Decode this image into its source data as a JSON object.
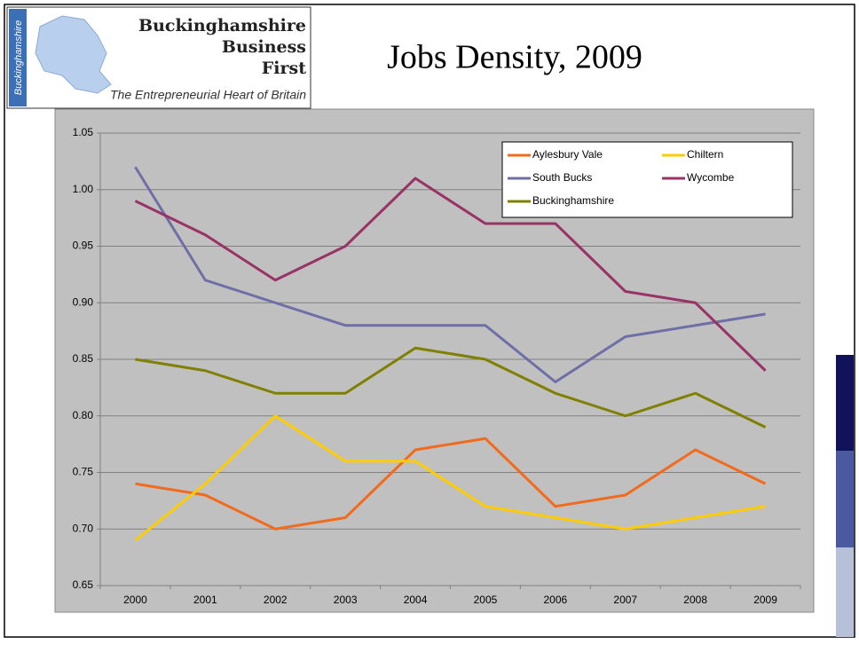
{
  "logo": {
    "side": "Buckinghamshire",
    "name": [
      "Buckinghamshire",
      "Business",
      "First"
    ],
    "tagline": "The Entrepreneurial Heart of Britain"
  },
  "chart_data": {
    "type": "line",
    "title": "Jobs Density, 2009",
    "categories": [
      "2000",
      "2001",
      "2002",
      "2003",
      "2004",
      "2005",
      "2006",
      "2007",
      "2008",
      "2009"
    ],
    "series": [
      {
        "name": "Aylesbury Vale",
        "color": "#f26b1d",
        "values": [
          0.74,
          0.73,
          0.7,
          0.71,
          0.77,
          0.78,
          0.72,
          0.73,
          0.77,
          0.74
        ]
      },
      {
        "name": "Chiltern",
        "color": "#ffcc00",
        "values": [
          0.69,
          0.74,
          0.8,
          0.76,
          0.76,
          0.72,
          0.71,
          0.7,
          0.71,
          0.72
        ]
      },
      {
        "name": "South Bucks",
        "color": "#6f6fa8",
        "values": [
          1.02,
          0.92,
          0.9,
          0.88,
          0.88,
          0.88,
          0.83,
          0.87,
          0.88,
          0.89
        ]
      },
      {
        "name": "Wycombe",
        "color": "#993366",
        "values": [
          0.99,
          0.96,
          0.92,
          0.95,
          1.01,
          0.97,
          0.97,
          0.91,
          0.9,
          0.84
        ]
      },
      {
        "name": "Buckinghamshire",
        "color": "#808000",
        "values": [
          0.85,
          0.84,
          0.82,
          0.82,
          0.86,
          0.85,
          0.82,
          0.8,
          0.82,
          0.79
        ]
      }
    ],
    "ylim": [
      0.65,
      1.05
    ],
    "yticks": [
      0.65,
      {
        "value": 0.7,
        "label": "0.70"
      },
      0.75,
      {
        "value": 0.8,
        "label": "0.80"
      },
      0.85,
      {
        "value": 0.9,
        "label": "0.90"
      },
      0.95,
      {
        "value": 1,
        "label": "1.00"
      },
      1.05
    ],
    "grid": true,
    "legend": "top-right"
  }
}
